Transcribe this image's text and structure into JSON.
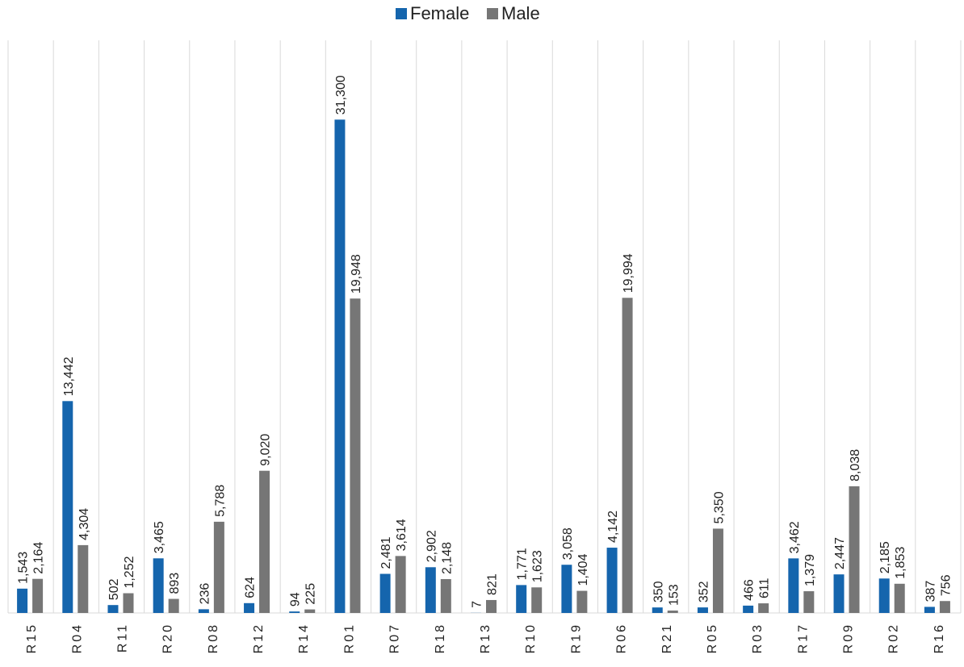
{
  "chart_data": {
    "type": "bar",
    "categories": [
      "R15",
      "R04",
      "R11",
      "R20",
      "R08",
      "R12",
      "R14",
      "R01",
      "R07",
      "R18",
      "R13",
      "R10",
      "R19",
      "R06",
      "R21",
      "R05",
      "R03",
      "R17",
      "R09",
      "R02",
      "R16"
    ],
    "series": [
      {
        "name": "Female",
        "color": "#1565ad",
        "values": [
          1543,
          13442,
          502,
          3465,
          236,
          624,
          94,
          31300,
          2481,
          2902,
          7,
          1771,
          3058,
          4142,
          350,
          352,
          466,
          3462,
          2447,
          2185,
          387
        ],
        "value_labels": [
          "1,543",
          "13,442",
          "502",
          "3,465",
          "236",
          "624",
          "94",
          "31,300",
          "2,481",
          "2,902",
          "7",
          "1,771",
          "3,058",
          "4,142",
          "350",
          "352",
          "466",
          "3,462",
          "2,447",
          "2,185",
          "387"
        ]
      },
      {
        "name": "Male",
        "color": "#767676",
        "values": [
          2164,
          4304,
          1252,
          893,
          5788,
          9020,
          225,
          19948,
          3614,
          2148,
          821,
          1623,
          1404,
          19994,
          153,
          5350,
          611,
          1379,
          8038,
          1853,
          756
        ],
        "value_labels": [
          "2,164",
          "4,304",
          "1,252",
          "893",
          "5,788",
          "9,020",
          "225",
          "19,948",
          "3,614",
          "2,148",
          "821",
          "1,623",
          "1,404",
          "19,994",
          "153",
          "5,350",
          "611",
          "1,379",
          "8,038",
          "1,853",
          "756"
        ]
      }
    ],
    "ylim": [
      0,
      35000
    ],
    "legend": "top"
  }
}
